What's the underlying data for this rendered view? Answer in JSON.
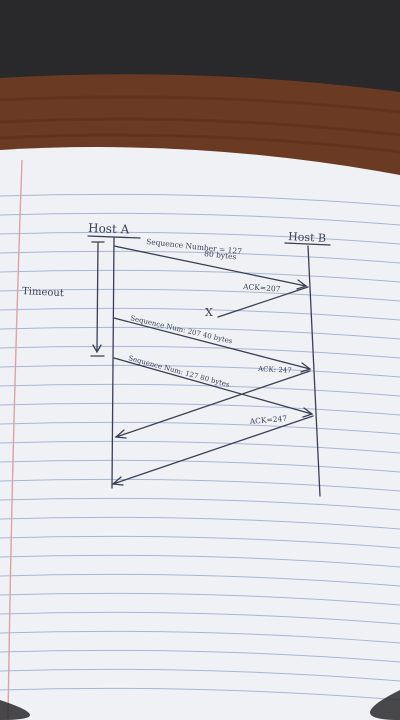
{
  "photo": {
    "colors": {
      "background_top": "#27272a",
      "wood": "#6b3a22",
      "paper": "#f1f2f6",
      "rule_line": "#a9b7d4",
      "margin_line": "#d9a3a8",
      "ink": "#3a3f55"
    }
  },
  "diagram": {
    "host_a": "Host A",
    "host_b": "Host B",
    "timeout": "Timeout",
    "messages": [
      {
        "id": "seg1",
        "line1": "Sequence Number = 127",
        "line2": "80 bytes"
      },
      {
        "id": "ack1",
        "label": "ACK=207"
      },
      {
        "id": "seg2",
        "label": "Sequence Num: 207 40 bytes"
      },
      {
        "id": "ack2",
        "label": "ACK: 247"
      },
      {
        "id": "seg3",
        "label": "Sequence Num: 127 80 bytes"
      },
      {
        "id": "ack3",
        "label": "ACK=247"
      }
    ],
    "lost_marker": "X"
  }
}
